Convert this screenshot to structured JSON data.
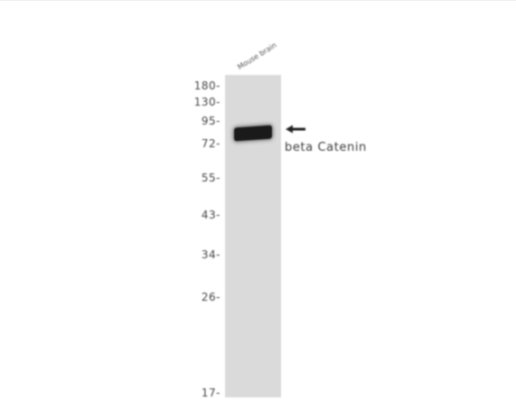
{
  "blot": {
    "sample_label": "Mouse brain",
    "protein_label": "beta Catenin",
    "markers": [
      "180-",
      "130-",
      "95-",
      "72-",
      "55-",
      "43-",
      "34-",
      "26-",
      "17-"
    ],
    "band_marker_index": 3,
    "arrow_icon": "left-arrow-icon",
    "colors": {
      "background": "#ffffff",
      "lane": "#dadada",
      "band": "#1a1a1a",
      "text": "#444444"
    }
  }
}
